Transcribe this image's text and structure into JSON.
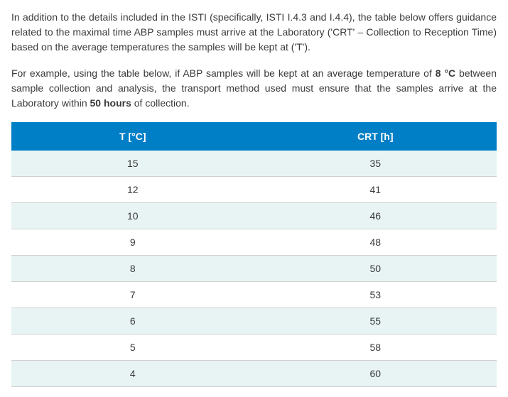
{
  "paragraphs": {
    "p1_a": "In addition to the details included in the ISTI (specifically, ISTI I.4.3 and I.4.4), the table below offers guidance related to the maximal time ABP samples must arrive at the Laboratory ('CRT' – Collection to Reception Time) based on the average temperatures the samples will be kept at ('T').",
    "p2_a": "For example, using the table below, if ABP samples will be kept at an average temperature of ",
    "p2_bold1": "8 °C",
    "p2_b": " between sample collection and analysis, the transport method used must ensure that the samples arrive at the Laboratory within ",
    "p2_bold2": "50 hours",
    "p2_c": " of collection."
  },
  "table": {
    "type": "table",
    "header_bg": "#007ec6",
    "header_text_color": "#ffffff",
    "row_even_bg": "#e8f4f4",
    "row_odd_bg": "#ffffff",
    "border_color": "#d0d0d0",
    "text_color": "#3a3a3a",
    "fontsize": 14,
    "columns": [
      "T [°C]",
      "CRT [h]"
    ],
    "rows": [
      [
        "15",
        "35"
      ],
      [
        "12",
        "41"
      ],
      [
        "10",
        "46"
      ],
      [
        "9",
        "48"
      ],
      [
        "8",
        "50"
      ],
      [
        "7",
        "53"
      ],
      [
        "6",
        "55"
      ],
      [
        "5",
        "58"
      ],
      [
        "4",
        "60"
      ]
    ]
  }
}
